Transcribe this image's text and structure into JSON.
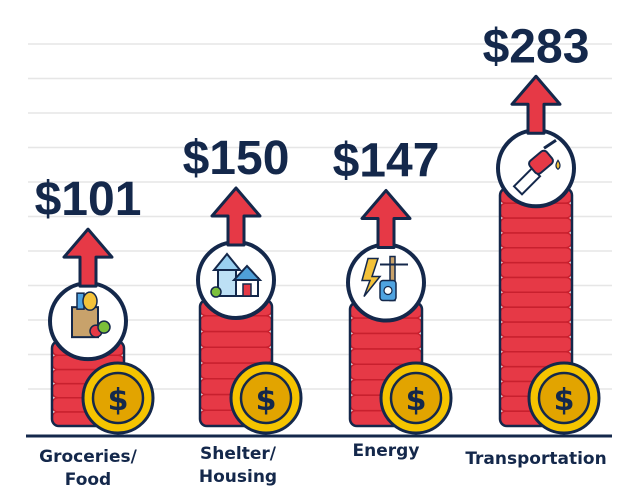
{
  "colors": {
    "navy": "#14284b",
    "red": "#e63946",
    "red_dark": "#c8202e",
    "coin": "#f5c400",
    "coin_dark": "#e2a400",
    "grid": "#e6e6e6"
  },
  "chart_data": {
    "type": "bar",
    "title": "",
    "xlabel": "",
    "ylabel": "",
    "grid": true,
    "categories": [
      "Groceries/ Food",
      "Shelter/ Housing",
      "Energy",
      "Transportation"
    ],
    "values": [
      101,
      150,
      147,
      283
    ],
    "data_labels": [
      "$101",
      "$150",
      "$147",
      "$283"
    ],
    "icons": [
      "grocery-bag-icon",
      "house-icon",
      "power-pole-icon",
      "fuel-nozzle-icon"
    ],
    "category_lines": [
      [
        "Groceries/",
        "Food"
      ],
      [
        "Shelter/",
        "Housing"
      ],
      [
        "Energy"
      ],
      [
        "Transportation"
      ]
    ]
  }
}
